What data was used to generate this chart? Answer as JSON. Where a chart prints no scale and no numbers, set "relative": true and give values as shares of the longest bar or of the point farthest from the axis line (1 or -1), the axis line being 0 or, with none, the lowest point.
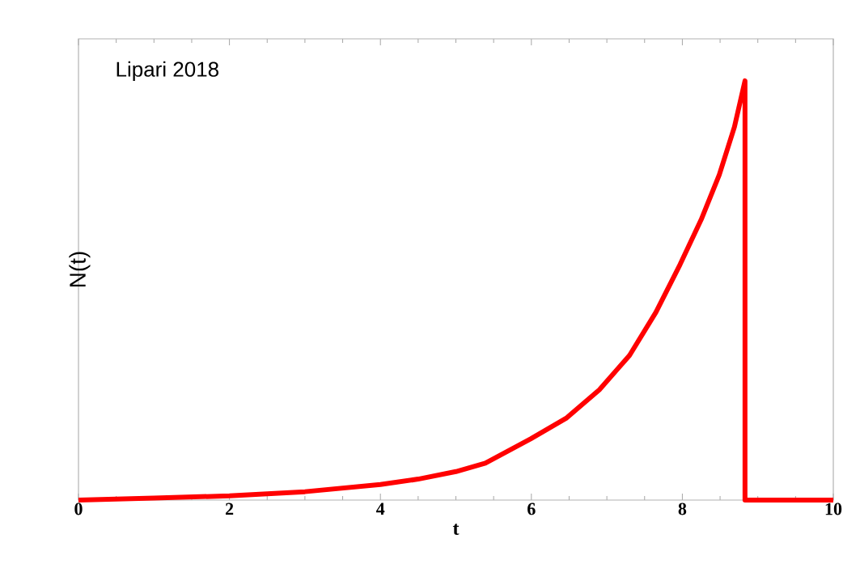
{
  "chart_data": {
    "type": "line",
    "relative": true,
    "xlabel": "t",
    "ylabel": "N(t)",
    "annotations": [
      "Lipari 2018"
    ],
    "xlim": [
      0,
      10
    ],
    "xticks": [
      0,
      2,
      4,
      6,
      8,
      10
    ],
    "color": "#ff0000",
    "x": [
      0,
      1,
      2,
      3,
      4,
      4.5,
      5,
      5.39,
      5.99,
      6.46,
      6.9,
      7.3,
      7.65,
      7.97,
      8.25,
      8.49,
      8.69,
      8.83,
      8.83,
      10
    ],
    "values": [
      0,
      0.005,
      0.01,
      0.02,
      0.037,
      0.05,
      0.068,
      0.088,
      0.146,
      0.195,
      0.263,
      0.345,
      0.448,
      0.562,
      0.669,
      0.776,
      0.89,
      1,
      0,
      0
    ]
  }
}
